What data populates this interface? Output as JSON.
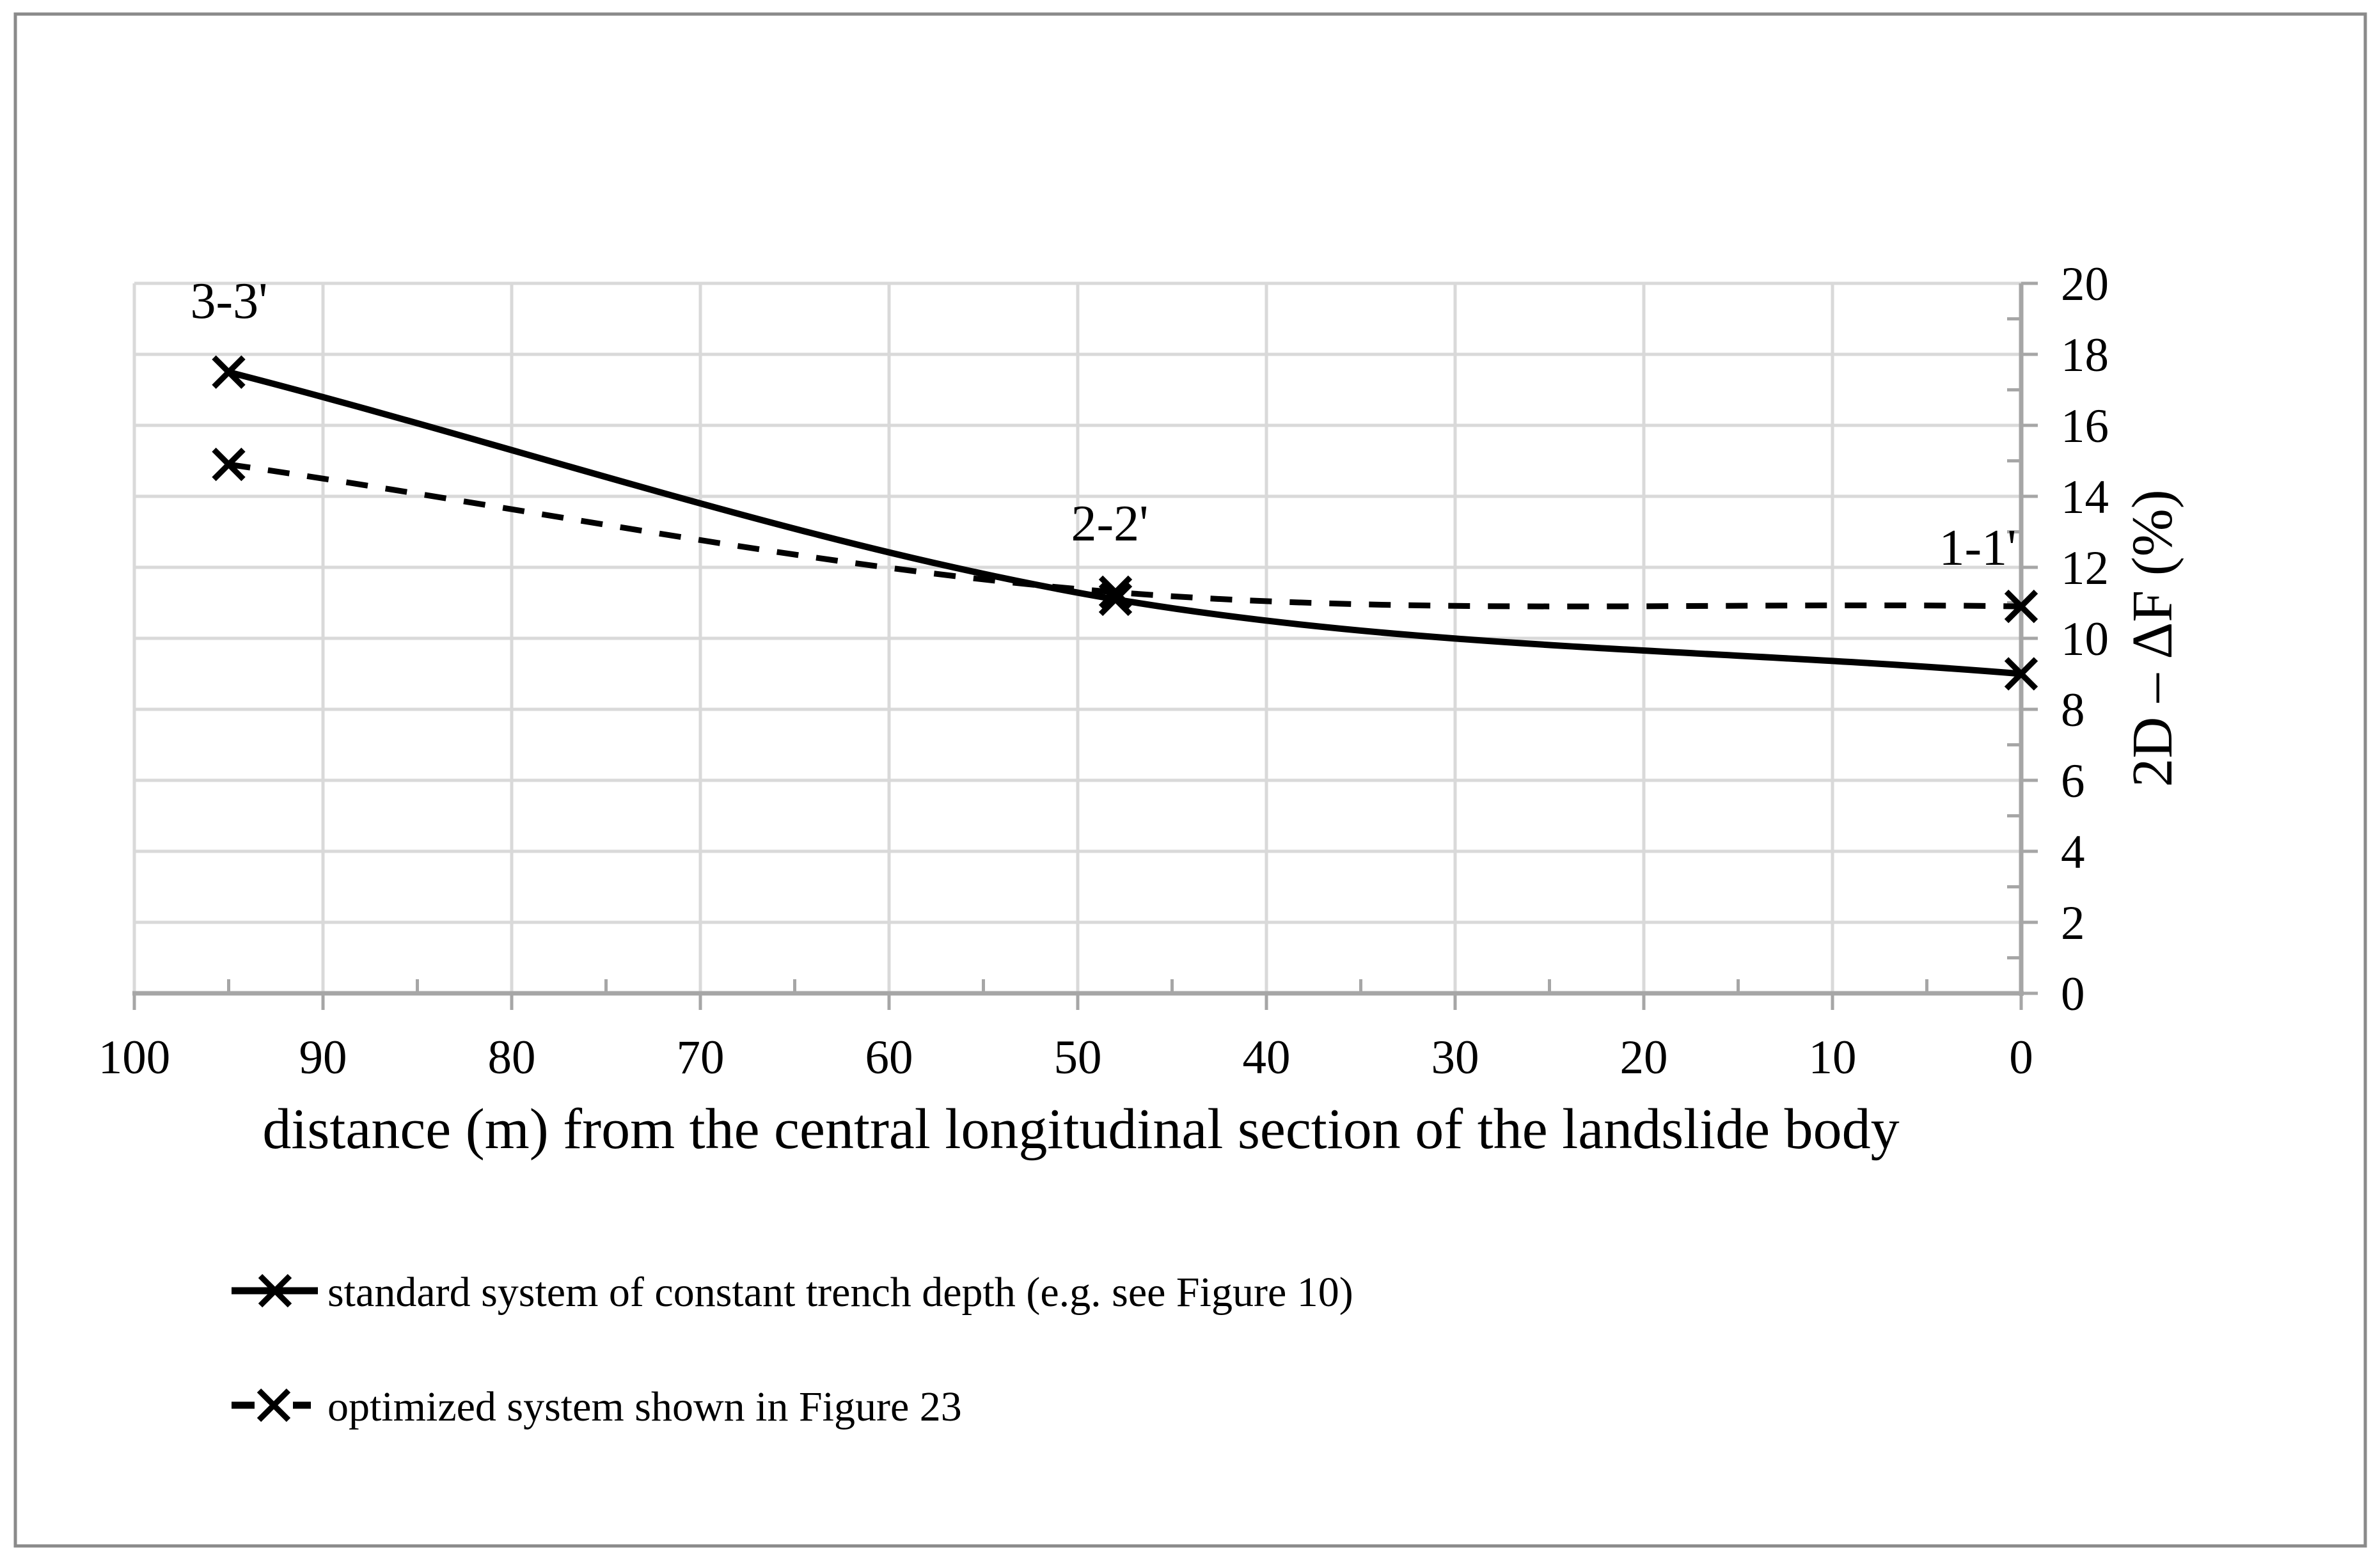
{
  "figure": {
    "background": "#ffffff",
    "border_color": "#8a8a8a",
    "point_labels": {
      "p33": "3-3'",
      "p22": "2-2'",
      "p11": "1-1'"
    }
  },
  "legend": {
    "items": [
      {
        "label": "standard system of constant trench depth (e.g. see Figure 10)",
        "style": "solid",
        "marker": "x"
      },
      {
        "label": "optimized system shown in Figure 23",
        "style": "dashed",
        "marker": "x"
      }
    ]
  },
  "colors": {
    "series": "#000000",
    "gridline": "#d9d9d9",
    "axis": "#a6a6a6",
    "text": "#000000"
  },
  "chart_data": {
    "type": "line",
    "title": "",
    "x_axis": {
      "title": "distance (m) from the central longitudinal section of the landslide body",
      "ticks": [
        100,
        90,
        80,
        70,
        60,
        50,
        40,
        30,
        20,
        10,
        0
      ],
      "minor_ticks": [
        95,
        85,
        75,
        65,
        55,
        45,
        35,
        25,
        15,
        5
      ],
      "range": [
        100,
        0
      ],
      "direction": "reversed",
      "position": "bottom"
    },
    "y_axis": {
      "title": "2D – ΔF (%)",
      "ticks": [
        20,
        18,
        16,
        14,
        12,
        10,
        8,
        6,
        4,
        2,
        0
      ],
      "minor_ticks": [
        19,
        17,
        15,
        13,
        11,
        9,
        7,
        5,
        3,
        1
      ],
      "range": [
        0,
        20
      ],
      "position": "right"
    },
    "grid": "both",
    "legend_position": "bottom-left",
    "series": [
      {
        "name": "standard system of constant trench depth (e.g. see Figure 10)",
        "style": "solid",
        "marker": "x",
        "points": [
          {
            "x": 95,
            "y": 17.5,
            "label": "3-3'"
          },
          {
            "x": 48,
            "y": 11.1,
            "label": "2-2'"
          },
          {
            "x": 0,
            "y": 9.0,
            "label": "1-1'"
          }
        ]
      },
      {
        "name": "optimized system shown in Figure 23",
        "style": "dashed",
        "marker": "x",
        "points": [
          {
            "x": 95,
            "y": 14.9,
            "label": "3-3'"
          },
          {
            "x": 48,
            "y": 11.3,
            "label": "2-2'"
          },
          {
            "x": 0,
            "y": 10.9,
            "label": "1-1'"
          }
        ]
      }
    ]
  }
}
